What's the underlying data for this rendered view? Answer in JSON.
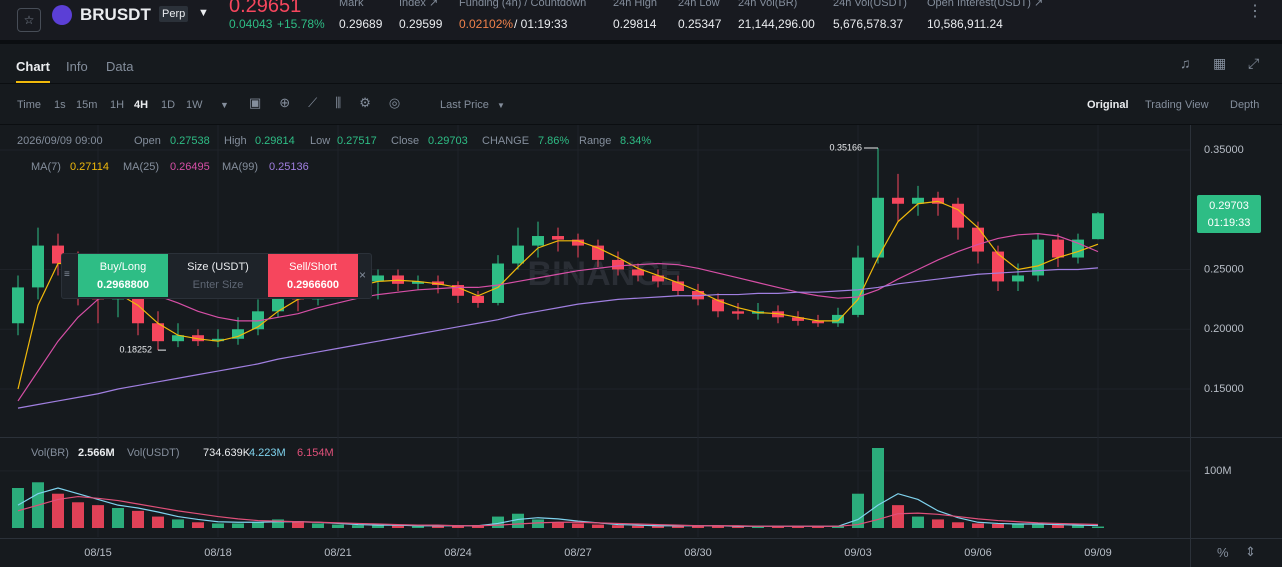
{
  "header": {
    "symbol": "BRUSDT",
    "badge": "Perp",
    "price": "0.29651",
    "change": "0.04043",
    "change_pct": "+15.78%",
    "stats": [
      {
        "label": "Mark",
        "value": "0.29689"
      },
      {
        "label": "Index ↗",
        "value": "0.29599"
      },
      {
        "label": "Funding (4h) / Countdown",
        "value": "0.02102%",
        "extra": "/ 01:19:33"
      },
      {
        "label": "24h High",
        "value": "0.29814"
      },
      {
        "label": "24h Low",
        "value": "0.25347"
      },
      {
        "label": "24h Vol(BR)",
        "value": "21,144,296.00"
      },
      {
        "label": "24h Vol(USDT)",
        "value": "5,676,578.37"
      },
      {
        "label": "Open Interest(USDT) ↗",
        "value": "10,586,911.24"
      }
    ]
  },
  "tabs": [
    "Chart",
    "Info",
    "Data"
  ],
  "toolbar": {
    "intervals": [
      "Time",
      "1s",
      "15m",
      "1H",
      "4H",
      "1D",
      "1W"
    ],
    "price_type": "Last Price",
    "views": [
      "Original",
      "Trading View",
      "Depth"
    ]
  },
  "order_widget": {
    "buy_label": "Buy/Long",
    "buy_price": "0.2968800",
    "size_label": "Size (USDT)",
    "size_placeholder": "Enter Size",
    "sell_label": "Sell/Short",
    "sell_price": "0.2966600"
  },
  "info": {
    "date": "2026/09/09 09:00",
    "open": "Open",
    "high": "High",
    "low": "Low",
    "close": "Close",
    "change_label": "CHANGE",
    "change": "7.86%",
    "range_label": "Range",
    "range": "8.34%",
    "countdown": "01:19:33",
    "watermark": "BINANCE"
  },
  "volume_legend": {
    "vol_label": "Vol(BR)",
    "vol": "2.566M",
    "usdt_label": "Vol(USDT)",
    "usdt": "734.639K",
    "ma1": "4.223M",
    "ma2": "6.154M"
  },
  "chart_data": [
    {
      "type": "candlestick",
      "categories": [
        null,
        null,
        null,
        null,
        "08/15",
        null,
        null,
        null,
        null,
        null,
        "08/18",
        null,
        null,
        null,
        null,
        null,
        "08/21",
        null,
        null,
        null,
        null,
        null,
        "08/24",
        null,
        null,
        null,
        null,
        null,
        "08/27",
        null,
        null,
        null,
        null,
        null,
        "08/30",
        null,
        null,
        null,
        null,
        null,
        null,
        null,
        "09/03",
        null,
        null,
        null,
        null,
        null,
        "09/06",
        null,
        null,
        null,
        null,
        null,
        "09/09"
      ],
      "open": [
        0.205,
        0.235,
        0.27,
        0.255,
        0.24,
        0.225,
        0.235,
        0.205,
        0.19,
        0.195,
        0.19,
        0.192,
        0.2,
        0.215,
        0.235,
        0.225,
        0.232,
        0.237,
        0.24,
        0.245,
        0.238,
        0.24,
        0.237,
        0.228,
        0.222,
        0.255,
        0.27,
        0.278,
        0.275,
        0.27,
        0.258,
        0.25,
        0.245,
        0.24,
        0.232,
        0.225,
        0.215,
        0.213,
        0.215,
        0.21,
        0.207,
        0.205,
        0.212,
        0.26,
        0.31,
        0.305,
        0.31,
        0.305,
        0.285,
        0.265,
        0.24,
        0.245,
        0.275,
        0.26,
        0.27538
      ],
      "high": [
        0.245,
        0.285,
        0.28,
        0.265,
        0.25,
        0.255,
        0.24,
        0.215,
        0.205,
        0.2,
        0.2,
        0.21,
        0.225,
        0.245,
        0.24,
        0.24,
        0.245,
        0.248,
        0.25,
        0.25,
        0.245,
        0.245,
        0.24,
        0.232,
        0.262,
        0.285,
        0.29,
        0.285,
        0.28,
        0.275,
        0.265,
        0.255,
        0.25,
        0.245,
        0.238,
        0.23,
        0.222,
        0.222,
        0.22,
        0.215,
        0.212,
        0.218,
        0.27,
        0.35166,
        0.33,
        0.32,
        0.315,
        0.31,
        0.29,
        0.27,
        0.255,
        0.28,
        0.28,
        0.28,
        0.29814
      ],
      "low": [
        0.195,
        0.225,
        0.245,
        0.22,
        0.205,
        0.21,
        0.195,
        0.18252,
        0.185,
        0.186,
        0.185,
        0.187,
        0.195,
        0.21,
        0.215,
        0.22,
        0.228,
        0.23,
        0.225,
        0.232,
        0.233,
        0.23,
        0.222,
        0.218,
        0.22,
        0.25,
        0.26,
        0.265,
        0.26,
        0.252,
        0.245,
        0.24,
        0.235,
        0.228,
        0.22,
        0.21,
        0.208,
        0.208,
        0.205,
        0.203,
        0.202,
        0.202,
        0.21,
        0.255,
        0.29,
        0.295,
        0.295,
        0.275,
        0.255,
        0.232,
        0.232,
        0.24,
        0.252,
        0.255,
        0.27517
      ],
      "close": [
        0.235,
        0.27,
        0.255,
        0.24,
        0.225,
        0.235,
        0.205,
        0.19,
        0.195,
        0.19,
        0.192,
        0.2,
        0.215,
        0.235,
        0.225,
        0.232,
        0.237,
        0.24,
        0.245,
        0.238,
        0.24,
        0.237,
        0.228,
        0.222,
        0.255,
        0.27,
        0.278,
        0.275,
        0.27,
        0.258,
        0.25,
        0.245,
        0.24,
        0.232,
        0.225,
        0.215,
        0.213,
        0.215,
        0.21,
        0.207,
        0.205,
        0.212,
        0.26,
        0.31,
        0.305,
        0.31,
        0.305,
        0.285,
        0.265,
        0.24,
        0.245,
        0.275,
        0.26,
        0.275,
        0.29703
      ],
      "series": [
        {
          "name": "MA(7)",
          "color": "#f0b90b",
          "values": [
            0.15,
            0.22,
            0.255,
            0.255,
            0.24,
            0.23,
            0.22,
            0.205,
            0.195,
            0.192,
            0.19,
            0.194,
            0.202,
            0.215,
            0.225,
            0.23,
            0.232,
            0.236,
            0.24,
            0.241,
            0.24,
            0.238,
            0.235,
            0.228,
            0.235,
            0.252,
            0.268,
            0.274,
            0.274,
            0.268,
            0.26,
            0.251,
            0.245,
            0.239,
            0.232,
            0.224,
            0.218,
            0.214,
            0.213,
            0.21,
            0.207,
            0.207,
            0.225,
            0.26,
            0.29,
            0.305,
            0.307,
            0.3,
            0.285,
            0.263,
            0.25,
            0.253,
            0.26,
            0.265,
            0.27114
          ]
        },
        {
          "name": "MA(25)",
          "color": "#d64fa6",
          "values": [
            0.14,
            0.165,
            0.19,
            0.21,
            0.225,
            0.232,
            0.232,
            0.228,
            0.222,
            0.215,
            0.21,
            0.207,
            0.207,
            0.21,
            0.213,
            0.218,
            0.222,
            0.226,
            0.229,
            0.231,
            0.233,
            0.234,
            0.235,
            0.235,
            0.237,
            0.24,
            0.243,
            0.246,
            0.249,
            0.251,
            0.253,
            0.254,
            0.255,
            0.254,
            0.251,
            0.247,
            0.243,
            0.239,
            0.235,
            0.231,
            0.228,
            0.226,
            0.227,
            0.233,
            0.242,
            0.25,
            0.258,
            0.265,
            0.271,
            0.276,
            0.279,
            0.28,
            0.278,
            0.272,
            0.26495
          ]
        },
        {
          "name": "MA(99)",
          "color": "#a07fe0",
          "values": [
            0.134,
            0.137,
            0.14,
            0.143,
            0.146,
            0.15,
            0.153,
            0.156,
            0.159,
            0.162,
            0.165,
            0.168,
            0.171,
            0.175,
            0.178,
            0.181,
            0.184,
            0.187,
            0.19,
            0.193,
            0.196,
            0.199,
            0.202,
            0.205,
            0.208,
            0.212,
            0.215,
            0.218,
            0.221,
            0.223,
            0.225,
            0.226,
            0.227,
            0.228,
            0.228,
            0.229,
            0.229,
            0.23,
            0.23,
            0.231,
            0.231,
            0.232,
            0.233,
            0.235,
            0.238,
            0.24,
            0.242,
            0.244,
            0.246,
            0.247,
            0.248,
            0.249,
            0.25,
            0.25,
            0.25136
          ]
        }
      ],
      "up_color": "#2ebd85",
      "down_color": "#f6465d",
      "ylim": [
        0.1115,
        0.3709
      ],
      "yticks": [
        {
          "value": 0.15,
          "label": "0.15000"
        },
        {
          "value": 0.2,
          "label": "0.20000"
        },
        {
          "value": 0.25,
          "label": "0.25000"
        },
        {
          "value": 0.35,
          "label": "0.35000"
        }
      ],
      "grid": true
    },
    {
      "type": "bar",
      "values": [
        70000000.0,
        80000000.0,
        60000000.0,
        45000000.0,
        40000000.0,
        35000000.0,
        30000000.0,
        20000000.0,
        15000000.0,
        10000000.0,
        8000000.0,
        8000000.0,
        10000000.0,
        15000000.0,
        12000000.0,
        8000000.0,
        6000000.0,
        5000000.0,
        5000000.0,
        5000000.0,
        4000000.0,
        4000000.0,
        4000000.0,
        5000000.0,
        20000000.0,
        25000000.0,
        15000000.0,
        10000000.0,
        8000000.0,
        6000000.0,
        5000000.0,
        4000000.0,
        4000000.0,
        4000000.0,
        4000000.0,
        4000000.0,
        3000000.0,
        3000000.0,
        3000000.0,
        3000000.0,
        3000000.0,
        4000000.0,
        60000000.0,
        140000000.0,
        40000000.0,
        20000000.0,
        15000000.0,
        10000000.0,
        8000000.0,
        7000000.0,
        8000000.0,
        6000000.0,
        6000000.0,
        5000000.0,
        2566000.0
      ],
      "series": [
        {
          "color": "#7fd3ee",
          "values": [
            40000000.0,
            60000000.0,
            70000000.0,
            60000000.0,
            50000000.0,
            40000000.0,
            35000000.0,
            28000000.0,
            20000000.0,
            15000000.0,
            11000000.0,
            10000000.0,
            10000000.0,
            11000000.0,
            11000000.0,
            10000000.0,
            8000000.0,
            6000000.0,
            5000000.0,
            5000000.0,
            4000000.0,
            4000000.0,
            4000000.0,
            4000000.0,
            8000000.0,
            15000000.0,
            18000000.0,
            16000000.0,
            12000000.0,
            9000000.0,
            6000000.0,
            5000000.0,
            4000000.0,
            4000000.0,
            4000000.0,
            4000000.0,
            3000000.0,
            3000000.0,
            3000000.0,
            3000000.0,
            3000000.0,
            3000000.0,
            15000000.0,
            40000000.0,
            60000000.0,
            50000000.0,
            30000000.0,
            18000000.0,
            10000000.0,
            8000000.0,
            7000000.0,
            7000000.0,
            6000000.0,
            5000000.0,
            4223000.0
          ]
        },
        {
          "color": "#e0507a",
          "values": [
            30000000.0,
            40000000.0,
            50000000.0,
            55000000.0,
            52000000.0,
            48000000.0,
            42000000.0,
            36000000.0,
            30000000.0,
            25000000.0,
            20000000.0,
            16000000.0,
            13000000.0,
            12000000.0,
            11000000.0,
            10000000.0,
            9000000.0,
            8000000.0,
            7000000.0,
            6000000.0,
            5000000.0,
            5000000.0,
            4000000.0,
            4000000.0,
            5000000.0,
            7000000.0,
            9000000.0,
            10000000.0,
            10000000.0,
            9000000.0,
            8000000.0,
            7000000.0,
            6000000.0,
            5000000.0,
            4000000.0,
            4000000.0,
            4000000.0,
            3000000.0,
            3000000.0,
            3000000.0,
            3000000.0,
            3000000.0,
            6000000.0,
            15000000.0,
            25000000.0,
            26000000.0,
            24000000.0,
            20000000.0,
            16000000.0,
            13000000.0,
            11000000.0,
            9000000.0,
            8000000.0,
            7000000.0,
            6154000.0
          ]
        }
      ],
      "ylim": [
        0,
        154000000
      ],
      "yticks": [
        {
          "value": 100000000,
          "label": "100M"
        }
      ]
    }
  ]
}
